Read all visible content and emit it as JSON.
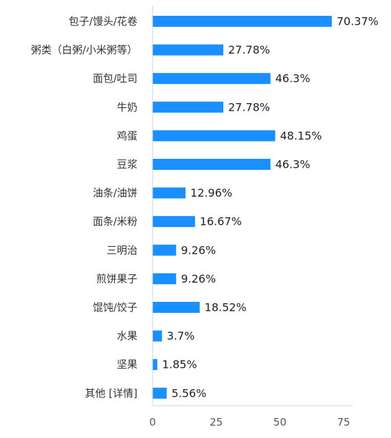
{
  "chart_data": {
    "type": "bar",
    "orientation": "horizontal",
    "categories": [
      "包子/馒头/花卷",
      "粥类（白粥/小米粥等）",
      "面包/吐司",
      "牛奶",
      "鸡蛋",
      "豆浆",
      "油条/油饼",
      "面条/米粉",
      "三明治",
      "煎饼果子",
      "馄饨/饺子",
      "水果",
      "坚果",
      "其他 [详情]"
    ],
    "values": [
      70.37,
      27.78,
      46.3,
      27.78,
      48.15,
      46.3,
      12.96,
      16.67,
      9.26,
      9.26,
      18.52,
      3.7,
      1.85,
      5.56
    ],
    "value_labels": [
      "70.37%",
      "27.78%",
      "46.3%",
      "27.78%",
      "48.15%",
      "46.3%",
      "12.96%",
      "16.67%",
      "9.26%",
      "9.26%",
      "18.52%",
      "3.7%",
      "1.85%",
      "5.56%"
    ],
    "x_ticks": [
      "0",
      "25",
      "50",
      "75"
    ],
    "xlim": [
      0,
      75
    ],
    "grid": false,
    "bar_color": "#1a8fff",
    "axis_color": "#c8d6e8"
  }
}
